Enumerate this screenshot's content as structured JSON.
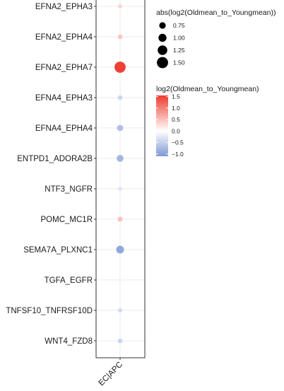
{
  "chart_data": {
    "type": "scatter",
    "x_categories": [
      "EC|APC"
    ],
    "y_categories": [
      "EFNA2_EPHA3",
      "EFNA2_EPHA4",
      "EFNA2_EPHA7",
      "EFNA4_EPHA3",
      "EFNA4_EPHA4",
      "ENTPD1_ADORA2B",
      "NTF3_NGFR",
      "POMC_MC1R",
      "SEMA7A_PLXNC1",
      "TGFA_EGFR",
      "TNFSF10_TNFRSF10D",
      "WNT4_FZD8"
    ],
    "values": [
      0.35,
      0.45,
      1.5,
      -0.45,
      -0.7,
      -0.8,
      -0.3,
      0.5,
      -0.95,
      0.15,
      -0.4,
      -0.45
    ],
    "size_legend": {
      "title": "abs(log2(Oldmean_to_Youngmean))",
      "labels": [
        "0.75",
        "1.00",
        "1.25",
        "1.50"
      ],
      "values": [
        0.75,
        1.0,
        1.25,
        1.5
      ]
    },
    "color_legend": {
      "title": "log2(Oldmean_to_Youngmean)",
      "labels": [
        "1.5",
        "1.0",
        "0.5",
        "0.0",
        "−0.5",
        "−1.0"
      ],
      "values": [
        1.5,
        1.0,
        0.5,
        0.0,
        -0.5,
        -1.0
      ],
      "range": [
        -1.1,
        1.55
      ],
      "low_color": "#7f99d4",
      "mid_color": "#ffffff",
      "high_color": "#ee3b2c"
    },
    "grid": true
  }
}
